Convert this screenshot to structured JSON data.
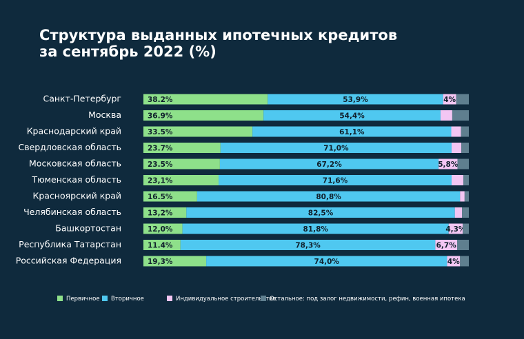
{
  "chart_data": {
    "type": "stacked-bar-horizontal",
    "title": [
      "Структура выданных ипотечных кредитов",
      "за сентябрь 2022 (%)"
    ],
    "categories": [
      "Санкт-Петербург",
      "Москва",
      "Краснодарский край",
      "Свердловская область",
      "Московская область",
      "Тюменская область",
      "Красноярский край",
      "Челябинская область",
      "Башкортостан",
      "Республика Татарстан",
      "Российская Федерация"
    ],
    "xlim": [
      0,
      100
    ],
    "series": [
      {
        "name": "Первичное",
        "color": "#8ee08a",
        "values": [
          38.2,
          36.9,
          33.5,
          23.7,
          23.5,
          23.1,
          16.5,
          13.2,
          12.0,
          11.4,
          19.3
        ],
        "value_labels": [
          "38.2%",
          "36.9%",
          "33.5%",
          "23.7%",
          "23.5%",
          "23,1%",
          "16.5%",
          "13,2%",
          "12,0%",
          "11.4%",
          "19,3%"
        ]
      },
      {
        "name": "Вторичное",
        "color": "#4fc8f0",
        "values": [
          53.9,
          54.4,
          61.1,
          71.0,
          67.2,
          71.6,
          80.8,
          82.5,
          81.8,
          78.3,
          74.0
        ],
        "value_labels": [
          "53,9%",
          "54,4%",
          "61,1%",
          "71,0%",
          "67,2%",
          "71,6%",
          "80,8%",
          "82,5%",
          "81,8%",
          "78,3%",
          "74,0%"
        ]
      },
      {
        "name": "Индивидуальное строительство",
        "color": "#f3c6f3",
        "values": [
          4,
          3.6,
          3.0,
          3.0,
          5.8,
          3.6,
          1.4,
          2.2,
          4.3,
          6.7,
          4
        ],
        "value_labels": [
          "4%",
          null,
          null,
          null,
          "5,8%",
          null,
          null,
          null,
          "4,3%",
          "6,7%",
          "4%"
        ]
      },
      {
        "name": "Остальное: под залог недвижимости, рефин, военная ипотека",
        "color": "#5f7f8f",
        "values": [
          3.9,
          5.1,
          2.4,
          2.3,
          3.5,
          1.7,
          1.3,
          2.1,
          1.9,
          3.6,
          2.7
        ]
      }
    ]
  }
}
